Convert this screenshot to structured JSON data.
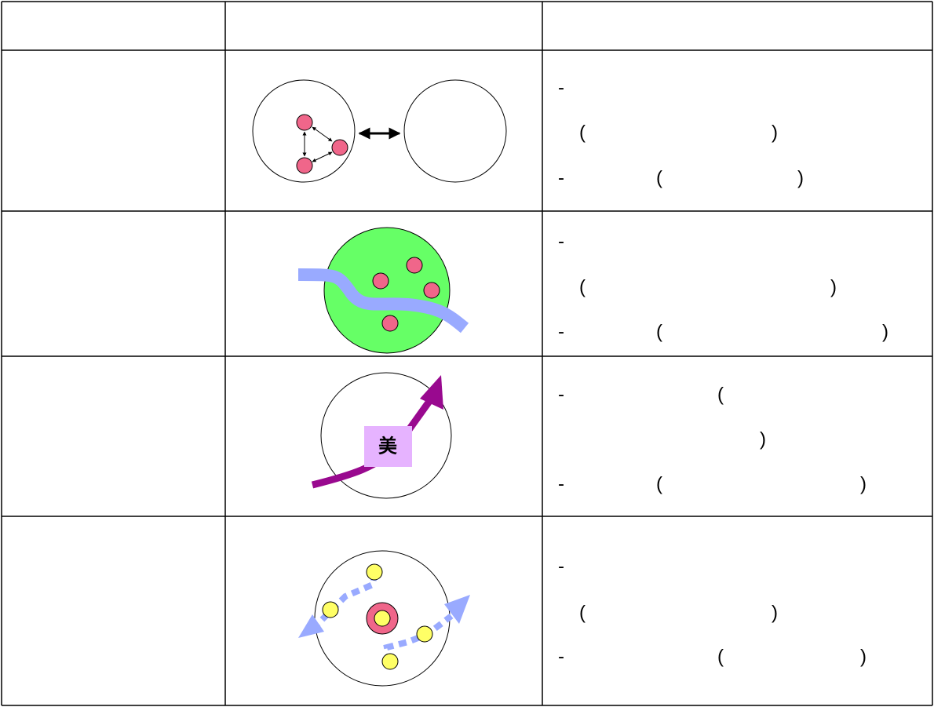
{
  "table": {
    "rows": [
      {
        "marks": [
          "-",
          "(",
          ")",
          "-",
          "(",
          ")"
        ]
      },
      {
        "marks": [
          "-",
          "(",
          ")",
          "-",
          "(",
          ")"
        ]
      },
      {
        "marks": [
          "-",
          "(",
          ")",
          "-",
          "(",
          ")"
        ]
      },
      {
        "marks": [
          "-",
          "(",
          ")",
          "-",
          "(",
          ")"
        ]
      }
    ],
    "icon_label": "美"
  }
}
